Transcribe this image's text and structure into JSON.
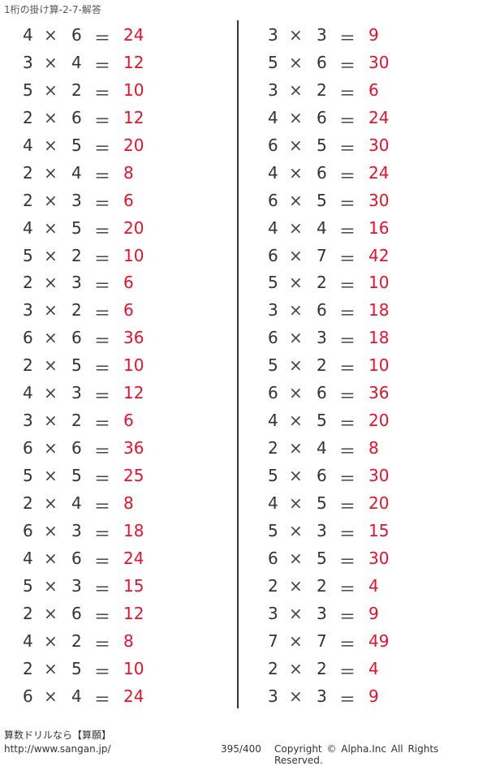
{
  "title": "1桁の掛け算-2-7-解答",
  "symbols": {
    "times": "×",
    "equals": "＝"
  },
  "colors": {
    "answer": "#e8102a",
    "text": "#333333"
  },
  "left": [
    [
      "4",
      "6",
      "24"
    ],
    [
      "3",
      "4",
      "12"
    ],
    [
      "5",
      "2",
      "10"
    ],
    [
      "2",
      "6",
      "12"
    ],
    [
      "4",
      "5",
      "20"
    ],
    [
      "2",
      "4",
      "8"
    ],
    [
      "2",
      "3",
      "6"
    ],
    [
      "4",
      "5",
      "20"
    ],
    [
      "5",
      "2",
      "10"
    ],
    [
      "2",
      "3",
      "6"
    ],
    [
      "3",
      "2",
      "6"
    ],
    [
      "6",
      "6",
      "36"
    ],
    [
      "2",
      "5",
      "10"
    ],
    [
      "4",
      "3",
      "12"
    ],
    [
      "3",
      "2",
      "6"
    ],
    [
      "6",
      "6",
      "36"
    ],
    [
      "5",
      "5",
      "25"
    ],
    [
      "2",
      "4",
      "8"
    ],
    [
      "6",
      "3",
      "18"
    ],
    [
      "4",
      "6",
      "24"
    ],
    [
      "5",
      "3",
      "15"
    ],
    [
      "2",
      "6",
      "12"
    ],
    [
      "4",
      "2",
      "8"
    ],
    [
      "2",
      "5",
      "10"
    ],
    [
      "6",
      "4",
      "24"
    ]
  ],
  "right": [
    [
      "3",
      "3",
      "9"
    ],
    [
      "5",
      "6",
      "30"
    ],
    [
      "3",
      "2",
      "6"
    ],
    [
      "4",
      "6",
      "24"
    ],
    [
      "6",
      "5",
      "30"
    ],
    [
      "4",
      "6",
      "24"
    ],
    [
      "6",
      "5",
      "30"
    ],
    [
      "4",
      "4",
      "16"
    ],
    [
      "6",
      "7",
      "42"
    ],
    [
      "5",
      "2",
      "10"
    ],
    [
      "3",
      "6",
      "18"
    ],
    [
      "6",
      "3",
      "18"
    ],
    [
      "5",
      "2",
      "10"
    ],
    [
      "6",
      "6",
      "36"
    ],
    [
      "4",
      "5",
      "20"
    ],
    [
      "2",
      "4",
      "8"
    ],
    [
      "5",
      "6",
      "30"
    ],
    [
      "4",
      "5",
      "20"
    ],
    [
      "5",
      "3",
      "15"
    ],
    [
      "6",
      "5",
      "30"
    ],
    [
      "2",
      "2",
      "4"
    ],
    [
      "3",
      "3",
      "9"
    ],
    [
      "7",
      "7",
      "49"
    ],
    [
      "2",
      "2",
      "4"
    ],
    [
      "3",
      "3",
      "9"
    ]
  ],
  "footer": {
    "brand": "算数ドリルなら【算願】",
    "url": "http://www.sangan.jp/",
    "page": "395/400",
    "copyright": "Copyright © Alpha.Inc All Rights Reserved."
  }
}
